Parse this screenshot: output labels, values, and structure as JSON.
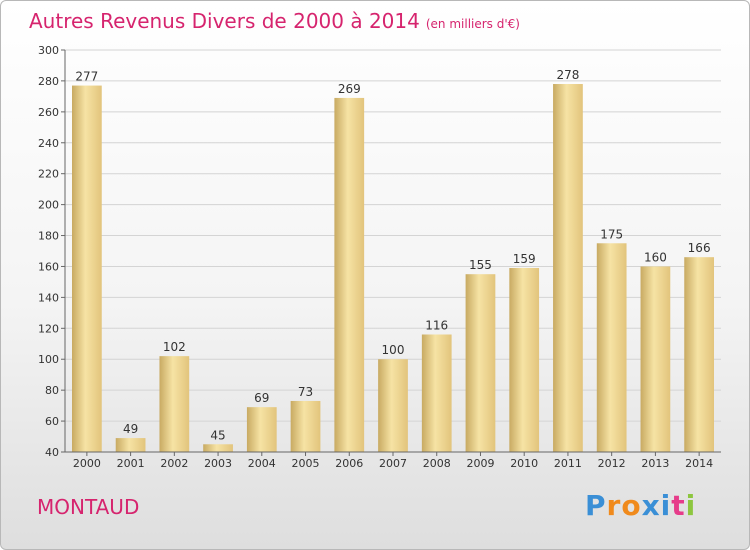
{
  "chart_data": {
    "type": "bar",
    "title": "Autres Revenus Divers de 2000 à 2014",
    "subtitle": "(en milliers d'€)",
    "categories": [
      "2000",
      "2001",
      "2002",
      "2003",
      "2004",
      "2005",
      "2006",
      "2007",
      "2008",
      "2009",
      "2010",
      "2011",
      "2012",
      "2013",
      "2014"
    ],
    "values": [
      277,
      49,
      102,
      45,
      69,
      73,
      269,
      100,
      116,
      155,
      159,
      278,
      175,
      160,
      166
    ],
    "ylim": [
      40,
      300
    ],
    "yticks": [
      40,
      60,
      80,
      100,
      120,
      140,
      160,
      180,
      200,
      220,
      240,
      260,
      280,
      300
    ],
    "grid": true,
    "bar_color": "#e7c982",
    "bar_highlight_color": "#f6e3a4",
    "bar_shadow_color": "#c8aa62"
  },
  "location": "MONTAUD",
  "logo": {
    "letters": [
      "P",
      "r",
      "o",
      "x",
      "i",
      "t",
      "i"
    ],
    "colors": [
      "#3a8fd6",
      "#f08a1c",
      "#f08a1c",
      "#3a8fd6",
      "#3a8fd6",
      "#e63c8a",
      "#8dc63f"
    ]
  },
  "colors": {
    "accent": "#d6246e",
    "grid": "#d4d4d4",
    "axis": "#666666",
    "text": "#333333"
  }
}
